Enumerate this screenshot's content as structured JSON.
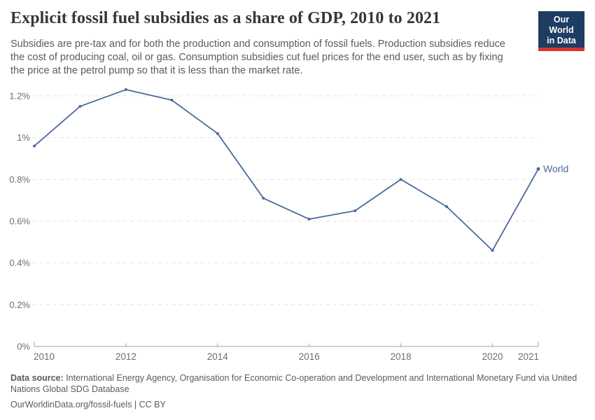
{
  "header": {
    "title": "Explicit fossil fuel subsidies as a share of GDP, 2010 to 2021",
    "subtitle_lines": [
      "Subsidies are pre-tax and for both the production and consumption of fossil fuels. Production subsidies reduce",
      "the cost of producing coal, oil or gas. Consumption subsidies cut fuel prices for the end user, such as by fixing",
      "the price at the petrol pump so that it is less than the market rate."
    ],
    "logo": {
      "line1": "Our World",
      "line2": "in Data"
    }
  },
  "chart_data": {
    "type": "line",
    "title": "Explicit fossil fuel subsidies as a share of GDP, 2010 to 2021",
    "x": [
      2010,
      2011,
      2012,
      2013,
      2014,
      2015,
      2016,
      2017,
      2018,
      2019,
      2020,
      2021
    ],
    "series": [
      {
        "name": "World",
        "values": [
          0.96,
          1.15,
          1.23,
          1.18,
          1.02,
          0.71,
          0.61,
          0.65,
          0.8,
          0.67,
          0.46,
          0.85
        ]
      }
    ],
    "unit": "%",
    "xlim": [
      2010,
      2021
    ],
    "ylim": [
      0,
      1.2
    ],
    "grid": "dashed-horizontal",
    "legend_position": "end-of-line",
    "x_ticks": [
      {
        "value": 2010,
        "label": "2010"
      },
      {
        "value": 2012,
        "label": "2012"
      },
      {
        "value": 2014,
        "label": "2014"
      },
      {
        "value": 2016,
        "label": "2016"
      },
      {
        "value": 2018,
        "label": "2018"
      },
      {
        "value": 2020,
        "label": "2020"
      },
      {
        "value": 2021,
        "label": "2021"
      }
    ],
    "y_ticks": [
      {
        "value": 0,
        "label": "0%"
      },
      {
        "value": 0.2,
        "label": "0.2%"
      },
      {
        "value": 0.4,
        "label": "0.4%"
      },
      {
        "value": 0.6,
        "label": "0.6%"
      },
      {
        "value": 0.8,
        "label": "0.8%"
      },
      {
        "value": 1,
        "label": "1%"
      },
      {
        "value": 1.2,
        "label": "1.2%"
      }
    ]
  },
  "footer": {
    "datasource_label": "Data source:",
    "datasource_text": " International Energy Agency, Organisation for Economic Co-operation and Development and International Monetary Fund via United Nations Global SDG Database",
    "link_text": "OurWorldinData.org/fossil-fuels | CC BY"
  },
  "colors": {
    "series_line": "#4c6a9c",
    "grid_line": "#e2e2e2",
    "axis_line": "#a5a5a5",
    "tick_label": "#6e6e6e",
    "title_text": "#383636",
    "body_text": "#5b5b5b",
    "logo_navy": "#1d3d63",
    "logo_red": "#d8352a"
  }
}
